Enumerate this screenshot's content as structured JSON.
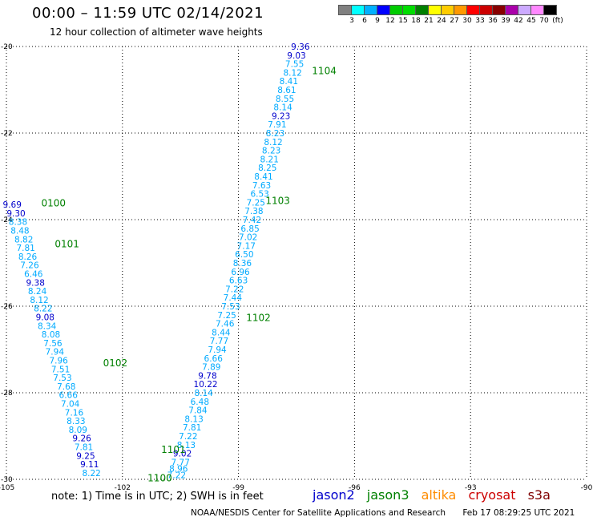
{
  "title": "00:00 – 11:59 UTC 02/14/2021",
  "subtitle": "12 hour collection of altimeter wave heights",
  "note": "note: 1) Time is in UTC; 2) SWH is in feet",
  "footer": {
    "credit": "NOAA/NESDIS Center for Satellite Applications and Research",
    "timestamp": "Feb 17 08:29:25 UTC 2021"
  },
  "satellites": [
    {
      "name": "jason2",
      "color": "#0000cc"
    },
    {
      "name": "jason3",
      "color": "#008000"
    },
    {
      "name": "altika",
      "color": "#ff8c00"
    },
    {
      "name": "cryosat",
      "color": "#cc0000"
    },
    {
      "name": "s3a",
      "color": "#800000"
    }
  ],
  "color_scale": {
    "unit": "(ft)",
    "ticks": [
      "3",
      "6",
      "9",
      "12",
      "15",
      "18",
      "21",
      "24",
      "27",
      "30",
      "33",
      "36",
      "39",
      "42",
      "45",
      "70"
    ],
    "colors": [
      "#808080",
      "#00ffff",
      "#00b0ff",
      "#0000ff",
      "#00cc00",
      "#00dd00",
      "#008000",
      "#ffff00",
      "#ffcc00",
      "#ff9900",
      "#ff0000",
      "#cc0000",
      "#880000",
      "#aa00aa",
      "#ccaaff",
      "#ff88ff",
      "#000000"
    ]
  },
  "chart_data": {
    "type": "scatter",
    "xlabel": "",
    "ylabel": "",
    "xlim": [
      -105,
      -90
    ],
    "ylim": [
      -30,
      -20
    ],
    "x_ticks": [
      "-105",
      "-102",
      "-99",
      "-96",
      "-93",
      "-90"
    ],
    "y_ticks": [
      "-20",
      "-22",
      "-24",
      "-26",
      "-28",
      "-30"
    ],
    "grid": true,
    "time_labels": [
      {
        "text": "1104",
        "lon": -97.1,
        "lat": -20.55,
        "color": "#008000"
      },
      {
        "text": "1103",
        "lon": -98.3,
        "lat": -23.55,
        "color": "#008000"
      },
      {
        "text": "1102",
        "lon": -98.8,
        "lat": -26.25,
        "color": "#008000"
      },
      {
        "text": "1101",
        "lon": -101.0,
        "lat": -29.3,
        "color": "#008000"
      },
      {
        "text": "1100",
        "lon": -101.35,
        "lat": -29.95,
        "color": "#008000"
      },
      {
        "text": "0100",
        "lon": -104.1,
        "lat": -23.6,
        "color": "#008000"
      },
      {
        "text": "0101",
        "lon": -103.75,
        "lat": -24.55,
        "color": "#008000"
      },
      {
        "text": "0102",
        "lon": -102.5,
        "lat": -27.3,
        "color": "#008000"
      }
    ],
    "series": [
      {
        "name": "Track 1100-1104",
        "points": [
          {
            "lon": -97.4,
            "lat": -20.0,
            "swh": "9.36"
          },
          {
            "lon": -97.5,
            "lat": -20.2,
            "swh": "9.03"
          },
          {
            "lon": -97.55,
            "lat": -20.4,
            "swh": "7.55"
          },
          {
            "lon": -97.6,
            "lat": -20.6,
            "swh": "8.12"
          },
          {
            "lon": -97.7,
            "lat": -20.8,
            "swh": "8.41"
          },
          {
            "lon": -97.75,
            "lat": -21.0,
            "swh": "8.61"
          },
          {
            "lon": -97.8,
            "lat": -21.2,
            "swh": "8.55"
          },
          {
            "lon": -97.85,
            "lat": -21.4,
            "swh": "8.14"
          },
          {
            "lon": -97.9,
            "lat": -21.6,
            "swh": "9.23"
          },
          {
            "lon": -98.0,
            "lat": -21.8,
            "swh": "7.91"
          },
          {
            "lon": -98.05,
            "lat": -22.0,
            "swh": "8.23"
          },
          {
            "lon": -98.1,
            "lat": -22.2,
            "swh": "8.12"
          },
          {
            "lon": -98.15,
            "lat": -22.4,
            "swh": "8.23"
          },
          {
            "lon": -98.2,
            "lat": -22.6,
            "swh": "8.21"
          },
          {
            "lon": -98.25,
            "lat": -22.8,
            "swh": "8.25"
          },
          {
            "lon": -98.35,
            "lat": -23.0,
            "swh": "8.41"
          },
          {
            "lon": -98.4,
            "lat": -23.2,
            "swh": "7.63"
          },
          {
            "lon": -98.45,
            "lat": -23.4,
            "swh": "6.53"
          },
          {
            "lon": -98.55,
            "lat": -23.6,
            "swh": "7.25"
          },
          {
            "lon": -98.6,
            "lat": -23.8,
            "swh": "7.38"
          },
          {
            "lon": -98.65,
            "lat": -24.0,
            "swh": "7.42"
          },
          {
            "lon": -98.7,
            "lat": -24.2,
            "swh": "6.85"
          },
          {
            "lon": -98.75,
            "lat": -24.4,
            "swh": "7.02"
          },
          {
            "lon": -98.8,
            "lat": -24.6,
            "swh": "7.17"
          },
          {
            "lon": -98.85,
            "lat": -24.8,
            "swh": "6.50"
          },
          {
            "lon": -98.9,
            "lat": -25.0,
            "swh": "8.36"
          },
          {
            "lon": -98.95,
            "lat": -25.2,
            "swh": "6.96"
          },
          {
            "lon": -99.0,
            "lat": -25.4,
            "swh": "6.63"
          },
          {
            "lon": -99.1,
            "lat": -25.6,
            "swh": "7.22"
          },
          {
            "lon": -99.15,
            "lat": -25.8,
            "swh": "7.44"
          },
          {
            "lon": -99.2,
            "lat": -26.0,
            "swh": "7.53"
          },
          {
            "lon": -99.3,
            "lat": -26.2,
            "swh": "7.25"
          },
          {
            "lon": -99.35,
            "lat": -26.4,
            "swh": "7.46"
          },
          {
            "lon": -99.45,
            "lat": -26.6,
            "swh": "8.44"
          },
          {
            "lon": -99.5,
            "lat": -26.8,
            "swh": "7.77"
          },
          {
            "lon": -99.55,
            "lat": -27.0,
            "swh": "7.94"
          },
          {
            "lon": -99.65,
            "lat": -27.2,
            "swh": "6.66"
          },
          {
            "lon": -99.7,
            "lat": -27.4,
            "swh": "7.89"
          },
          {
            "lon": -99.8,
            "lat": -27.6,
            "swh": "9.78"
          },
          {
            "lon": -99.85,
            "lat": -27.8,
            "swh": "10.22"
          },
          {
            "lon": -99.9,
            "lat": -28.0,
            "swh": "8.14"
          },
          {
            "lon": -100.0,
            "lat": -28.2,
            "swh": "6.48"
          },
          {
            "lon": -100.05,
            "lat": -28.4,
            "swh": "7.84"
          },
          {
            "lon": -100.15,
            "lat": -28.6,
            "swh": "8.13"
          },
          {
            "lon": -100.2,
            "lat": -28.8,
            "swh": "7.81"
          },
          {
            "lon": -100.3,
            "lat": -29.0,
            "swh": "7.22"
          },
          {
            "lon": -100.35,
            "lat": -29.2,
            "swh": "8.13"
          },
          {
            "lon": -100.45,
            "lat": -29.4,
            "swh": "9.02"
          },
          {
            "lon": -100.5,
            "lat": -29.6,
            "swh": "7.77"
          },
          {
            "lon": -100.55,
            "lat": -29.75,
            "swh": "8.96"
          },
          {
            "lon": -100.6,
            "lat": -29.9,
            "swh": "7.22"
          }
        ]
      },
      {
        "name": "Track 0100-0102",
        "points": [
          {
            "lon": -104.85,
            "lat": -23.65,
            "swh": "9.69"
          },
          {
            "lon": -104.75,
            "lat": -23.85,
            "swh": "9.30"
          },
          {
            "lon": -104.7,
            "lat": -24.05,
            "swh": "8.38"
          },
          {
            "lon": -104.65,
            "lat": -24.25,
            "swh": "8.48"
          },
          {
            "lon": -104.55,
            "lat": -24.45,
            "swh": "8.82"
          },
          {
            "lon": -104.5,
            "lat": -24.65,
            "swh": "7.81"
          },
          {
            "lon": -104.45,
            "lat": -24.85,
            "swh": "8.26"
          },
          {
            "lon": -104.4,
            "lat": -25.05,
            "swh": "7.26"
          },
          {
            "lon": -104.3,
            "lat": -25.25,
            "swh": "6.46"
          },
          {
            "lon": -104.25,
            "lat": -25.45,
            "swh": "9.38"
          },
          {
            "lon": -104.2,
            "lat": -25.65,
            "swh": "8.24"
          },
          {
            "lon": -104.15,
            "lat": -25.85,
            "swh": "8.12"
          },
          {
            "lon": -104.05,
            "lat": -26.05,
            "swh": "8.22"
          },
          {
            "lon": -104.0,
            "lat": -26.25,
            "swh": "9.08"
          },
          {
            "lon": -103.95,
            "lat": -26.45,
            "swh": "8.34"
          },
          {
            "lon": -103.85,
            "lat": -26.65,
            "swh": "8.08"
          },
          {
            "lon": -103.8,
            "lat": -26.85,
            "swh": "7.56"
          },
          {
            "lon": -103.75,
            "lat": -27.05,
            "swh": "7.94"
          },
          {
            "lon": -103.65,
            "lat": -27.25,
            "swh": "7.96"
          },
          {
            "lon": -103.6,
            "lat": -27.45,
            "swh": "7.51"
          },
          {
            "lon": -103.55,
            "lat": -27.65,
            "swh": "7.53"
          },
          {
            "lon": -103.45,
            "lat": -27.85,
            "swh": "7.68"
          },
          {
            "lon": -103.4,
            "lat": -28.05,
            "swh": "6.66"
          },
          {
            "lon": -103.35,
            "lat": -28.25,
            "swh": "7.04"
          },
          {
            "lon": -103.25,
            "lat": -28.45,
            "swh": "7.16"
          },
          {
            "lon": -103.2,
            "lat": -28.65,
            "swh": "8.33"
          },
          {
            "lon": -103.15,
            "lat": -28.85,
            "swh": "8.09"
          },
          {
            "lon": -103.05,
            "lat": -29.05,
            "swh": "9.26"
          },
          {
            "lon": -103.0,
            "lat": -29.25,
            "swh": "7.81"
          },
          {
            "lon": -102.95,
            "lat": -29.45,
            "swh": "9.25"
          },
          {
            "lon": -102.85,
            "lat": -29.65,
            "swh": "9.11"
          },
          {
            "lon": -102.8,
            "lat": -29.85,
            "swh": "8.22"
          }
        ]
      }
    ]
  }
}
